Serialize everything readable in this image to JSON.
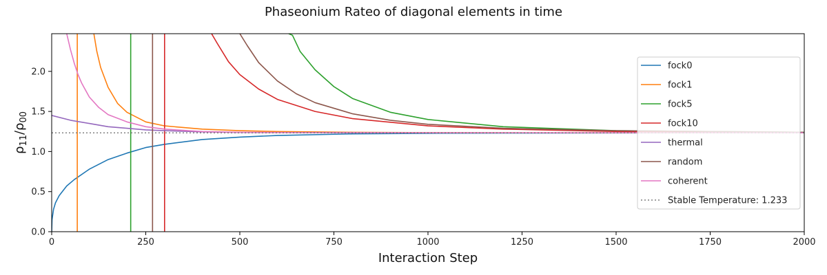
{
  "chart_data": {
    "type": "line",
    "title": "Phaseonium Rateo of diagonal elements in time",
    "xlabel": "Interaction Step",
    "ylabel": "ρ₁₁/ρ₀₀",
    "ylabel_main": "ρ",
    "ylabel_sub1": "11",
    "ylabel_sep": "/ρ",
    "ylabel_sub2": "00",
    "xlim": [
      0,
      2000
    ],
    "ylim": [
      0,
      2.47
    ],
    "x_ticks": [
      0,
      250,
      500,
      750,
      1000,
      1250,
      1500,
      1750,
      2000
    ],
    "x_tick_labels": [
      "0",
      "250",
      "500",
      "750",
      "1000",
      "1250",
      "1500",
      "1750",
      "2000"
    ],
    "y_ticks": [
      0.0,
      0.5,
      1.0,
      1.5,
      2.0
    ],
    "y_tick_labels": [
      "0.0",
      "0.5",
      "1.0",
      "1.5",
      "2.0"
    ],
    "grid": false,
    "legend_position": "right",
    "stable_value": 1.233,
    "series": [
      {
        "name": "fock0",
        "color": "#1f77b4",
        "x": [
          0,
          1,
          5,
          10,
          20,
          40,
          60,
          100,
          150,
          200,
          250,
          300,
          400,
          500,
          600,
          800,
          1000,
          1200,
          1500,
          2000
        ],
        "y": [
          0,
          0.15,
          0.28,
          0.36,
          0.45,
          0.57,
          0.65,
          0.78,
          0.9,
          0.98,
          1.05,
          1.09,
          1.15,
          1.18,
          1.2,
          1.22,
          1.227,
          1.23,
          1.232,
          1.233
        ]
      },
      {
        "name": "fock1",
        "color": "#ff7f0e",
        "spike_x": 68,
        "x": [
          112,
          120,
          130,
          150,
          175,
          200,
          250,
          300,
          400,
          500,
          600,
          800,
          1000,
          1200,
          1500,
          2000
        ],
        "y": [
          2.47,
          2.25,
          2.05,
          1.8,
          1.6,
          1.49,
          1.37,
          1.32,
          1.28,
          1.26,
          1.25,
          1.24,
          1.236,
          1.234,
          1.233,
          1.233
        ]
      },
      {
        "name": "fock5",
        "color": "#2ca02c",
        "spike_x": 210,
        "x": [
          630,
          640,
          660,
          700,
          750,
          800,
          900,
          1000,
          1200,
          1500,
          2000
        ],
        "y": [
          2.47,
          2.45,
          2.25,
          2.02,
          1.81,
          1.66,
          1.49,
          1.4,
          1.31,
          1.26,
          1.24
        ]
      },
      {
        "name": "fock10",
        "color": "#d62728",
        "spike_x": 300,
        "x": [
          425,
          440,
          470,
          500,
          550,
          600,
          700,
          800,
          1000,
          1200,
          1500,
          2000
        ],
        "y": [
          2.47,
          2.35,
          2.12,
          1.96,
          1.78,
          1.65,
          1.5,
          1.41,
          1.32,
          1.28,
          1.25,
          1.235
        ]
      },
      {
        "name": "thermal",
        "color": "#9467bd",
        "x": [
          0,
          50,
          100,
          150,
          200,
          250,
          300,
          400,
          500,
          700,
          1000,
          1500,
          2000
        ],
        "y": [
          1.45,
          1.39,
          1.35,
          1.31,
          1.29,
          1.27,
          1.26,
          1.245,
          1.238,
          1.235,
          1.234,
          1.233,
          1.233
        ]
      },
      {
        "name": "random",
        "color": "#8c564b",
        "spike_x": 268,
        "x": [
          500,
          520,
          550,
          600,
          650,
          700,
          800,
          900,
          1000,
          1200,
          1500,
          2000
        ],
        "y": [
          2.47,
          2.32,
          2.11,
          1.88,
          1.72,
          1.61,
          1.47,
          1.39,
          1.34,
          1.29,
          1.26,
          1.24
        ]
      },
      {
        "name": "coherent",
        "color": "#e377c2",
        "x": [
          40,
          50,
          60,
          70,
          80,
          100,
          125,
          150,
          200,
          250,
          300,
          400,
          500,
          700,
          1000,
          2000
        ],
        "y": [
          2.47,
          2.27,
          2.1,
          1.96,
          1.85,
          1.68,
          1.55,
          1.46,
          1.37,
          1.31,
          1.28,
          1.25,
          1.24,
          1.235,
          1.233,
          1.233
        ]
      },
      {
        "name": "Stable Temperature: 1.233",
        "color": "#7f7f7f",
        "dashed": true,
        "x": [
          0,
          2000
        ],
        "y": [
          1.233,
          1.233
        ]
      }
    ]
  }
}
